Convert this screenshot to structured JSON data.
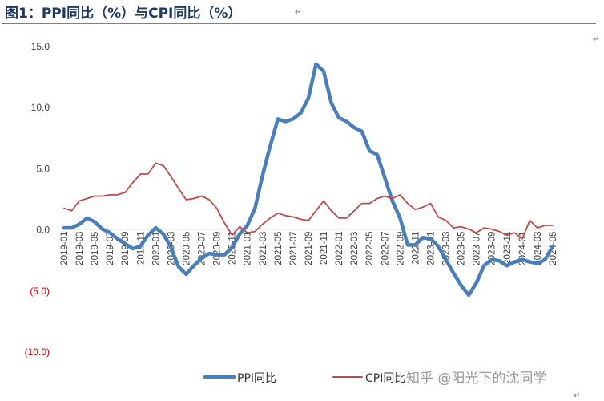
{
  "header": {
    "title": "图1：PPI同比（%）与CPI同比（%）",
    "para_mark": "↵"
  },
  "watermark": "知乎 @阳光下的沈同学",
  "chart_data": {
    "type": "line",
    "title": "图1：PPI同比（%）与CPI同比（%）",
    "xlabel": "",
    "ylabel": "",
    "ylim": [
      -10,
      15
    ],
    "y_ticks": [
      15.0,
      10.0,
      5.0,
      0.0,
      -5.0,
      -10.0
    ],
    "y_tick_labels": [
      "15.0",
      "10.0",
      "5.0",
      "0.0",
      "(5.0)",
      "(10.0)"
    ],
    "grid": false,
    "legend_position": "bottom",
    "x_tick_labels": [
      "2019-01",
      "2019-03",
      "2019-05",
      "2019-07",
      "2019-09",
      "2019-11",
      "2020-01",
      "2020-03",
      "2020-05",
      "2020-07",
      "2020-09",
      "2020-11",
      "2021-01",
      "2021-03",
      "2021-05",
      "2021-07",
      "2021-09",
      "2021-11",
      "2022-01",
      "2022-03",
      "2022-05",
      "2022-07",
      "2022-09",
      "2022-11",
      "2023-01",
      "2023-03",
      "2023-05",
      "2023-07",
      "2023-09",
      "2023-11",
      "2024-01",
      "2024-03",
      "2024-05"
    ],
    "categories": [
      "2019-01",
      "2019-02",
      "2019-03",
      "2019-04",
      "2019-05",
      "2019-06",
      "2019-07",
      "2019-08",
      "2019-09",
      "2019-10",
      "2019-11",
      "2019-12",
      "2020-01",
      "2020-02",
      "2020-03",
      "2020-04",
      "2020-05",
      "2020-06",
      "2020-07",
      "2020-08",
      "2020-09",
      "2020-10",
      "2020-11",
      "2020-12",
      "2021-01",
      "2021-02",
      "2021-03",
      "2021-04",
      "2021-05",
      "2021-06",
      "2021-07",
      "2021-08",
      "2021-09",
      "2021-10",
      "2021-11",
      "2021-12",
      "2022-01",
      "2022-02",
      "2022-03",
      "2022-04",
      "2022-05",
      "2022-06",
      "2022-07",
      "2022-08",
      "2022-09",
      "2022-10",
      "2022-11",
      "2022-12",
      "2023-01",
      "2023-02",
      "2023-03",
      "2023-04",
      "2023-05",
      "2023-06",
      "2023-07",
      "2023-08",
      "2023-09",
      "2023-10",
      "2023-11",
      "2023-12",
      "2024-01",
      "2024-02",
      "2024-03",
      "2024-04",
      "2024-05"
    ],
    "series": [
      {
        "name": "PPI同比",
        "color": "#4a7ebb",
        "values": [
          0.1,
          0.1,
          0.4,
          0.9,
          0.6,
          0.0,
          -0.3,
          -0.8,
          -1.2,
          -1.6,
          -1.4,
          -0.5,
          0.1,
          -0.4,
          -1.5,
          -3.1,
          -3.7,
          -3.0,
          -2.4,
          -2.0,
          -2.1,
          -2.1,
          -1.5,
          -0.4,
          0.3,
          1.7,
          4.4,
          6.8,
          9.0,
          8.8,
          9.0,
          9.5,
          10.7,
          13.5,
          12.9,
          10.3,
          9.1,
          8.8,
          8.3,
          8.0,
          6.4,
          6.1,
          4.2,
          2.3,
          0.9,
          -1.3,
          -1.3,
          -0.7,
          -0.8,
          -1.4,
          -2.5,
          -3.6,
          -4.6,
          -5.4,
          -4.4,
          -3.0,
          -2.5,
          -2.6,
          -3.0,
          -2.7,
          -2.5,
          -2.7,
          -2.8,
          -2.5,
          -1.4
        ]
      },
      {
        "name": "CPI同比",
        "color": "#be4b48",
        "values": [
          1.7,
          1.5,
          2.3,
          2.5,
          2.7,
          2.7,
          2.8,
          2.8,
          3.0,
          3.8,
          4.5,
          4.5,
          5.4,
          5.2,
          4.3,
          3.3,
          2.4,
          2.5,
          2.7,
          2.4,
          1.7,
          0.5,
          -0.5,
          0.2,
          -0.3,
          -0.2,
          0.4,
          0.9,
          1.3,
          1.1,
          1.0,
          0.8,
          0.7,
          1.5,
          2.3,
          1.5,
          0.9,
          0.9,
          1.5,
          2.1,
          2.1,
          2.5,
          2.7,
          2.5,
          2.8,
          2.1,
          1.6,
          1.8,
          2.1,
          1.0,
          0.7,
          0.1,
          0.2,
          0.0,
          -0.3,
          0.1,
          0.0,
          -0.2,
          -0.5,
          -0.3,
          -0.8,
          0.7,
          0.1,
          0.3,
          0.3
        ]
      }
    ]
  }
}
